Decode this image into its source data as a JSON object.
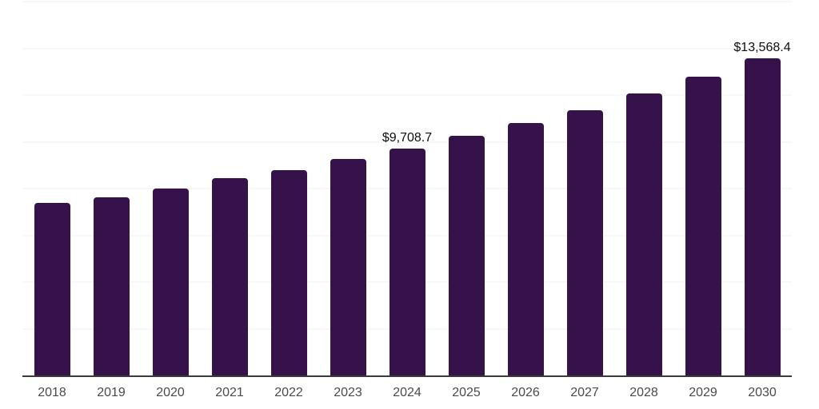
{
  "chart_data": {
    "type": "bar",
    "title": "",
    "xlabel": "",
    "ylabel": "",
    "categories": [
      "2018",
      "2019",
      "2020",
      "2021",
      "2022",
      "2023",
      "2024",
      "2025",
      "2026",
      "2027",
      "2028",
      "2029",
      "2030"
    ],
    "values": [
      7370,
      7620,
      8010,
      8430,
      8800,
      9250,
      9708.7,
      10250,
      10800,
      11350,
      12070,
      12790,
      13568.4
    ],
    "data_labels": {
      "2024": "$9,708.7",
      "2030": "$13,568.4"
    },
    "ylim": [
      0,
      16000
    ],
    "grid_step": 2000,
    "grid": "horizontal",
    "legend": false,
    "bar_color": "#36124B",
    "gridline_color": "#f2f0f3",
    "axis_line_color": "#3a3a3a",
    "value_label_color": "#0d0d0d",
    "tick_label_color": "#4a4a4a"
  }
}
